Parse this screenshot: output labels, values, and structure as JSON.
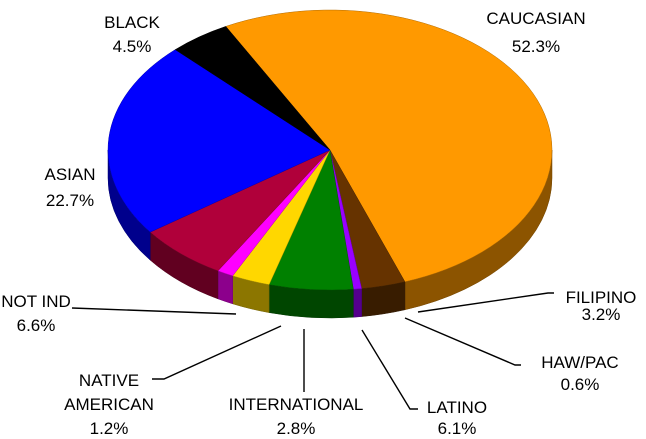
{
  "chart_data": {
    "type": "pie",
    "title": "",
    "style": "3d-tilted",
    "slices": [
      {
        "label": "CAUCASIAN",
        "value": 52.3,
        "value_text": "52.3%",
        "color": "#FF9900"
      },
      {
        "label": "FILIPINO",
        "value": 3.2,
        "value_text": "3.2%",
        "color": "#663300"
      },
      {
        "label": "HAW/PAC",
        "value": 0.6,
        "value_text": "0.6%",
        "color": "#9900FF"
      },
      {
        "label": "LATINO",
        "value": 6.1,
        "value_text": "6.1%",
        "color": "#008000"
      },
      {
        "label": "INTERNATIONAL",
        "value": 2.8,
        "value_text": "2.8%",
        "color": "#FFD700"
      },
      {
        "label": "NATIVE AMERICAN",
        "value": 1.2,
        "value_text": "1.2%",
        "color": "#FF00FF"
      },
      {
        "label": "NOT IND",
        "value": 6.6,
        "value_text": "6.6%",
        "color": "#B0003A"
      },
      {
        "label": "ASIAN",
        "value": 22.7,
        "value_text": "22.7%",
        "color": "#0000FF"
      },
      {
        "label": "BLACK",
        "value": 4.5,
        "value_text": "4.5%",
        "color": "#000000"
      }
    ]
  }
}
